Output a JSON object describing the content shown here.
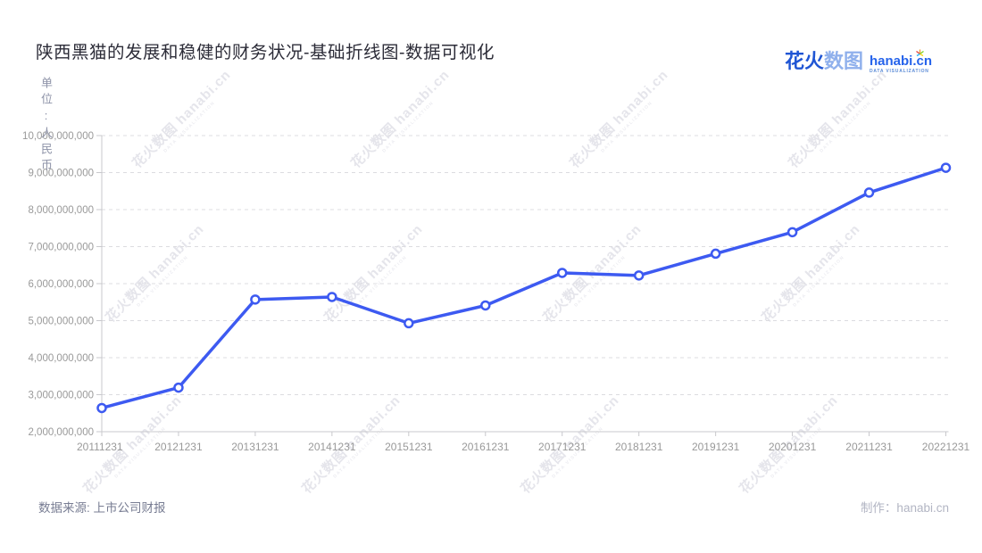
{
  "title": "陕西黑猫的发展和稳健的财务状况-基础折线图-数据可视化",
  "logo": {
    "brand_cn_primary": "花火",
    "brand_cn_secondary": "数图",
    "brand_en": "hanabi.cn",
    "tagline": "DATA VISUALIZATION"
  },
  "unit_label": "单位:人民币",
  "footer": {
    "source": "数据来源: 上市公司财报",
    "credit": "制作：hanabi.cn"
  },
  "watermark": {
    "text": "花火数图 hanabi.cn",
    "tagline": "DATA VISUALIZATION"
  },
  "colors": {
    "line": "#3d5af1",
    "marker_fill": "#ffffff",
    "axis": "#c8c8cc",
    "grid": "#dcdce0",
    "tick_label": "#999999"
  },
  "chart_data": {
    "type": "line",
    "title": "陕西黑猫的发展和稳健的财务状况-基础折线图-数据可视化",
    "categories": [
      "20111231",
      "20121231",
      "20131231",
      "20141231",
      "20151231",
      "20161231",
      "20171231",
      "20181231",
      "20191231",
      "20201231",
      "20211231",
      "20221231"
    ],
    "values": [
      2640000000,
      3190000000,
      5570000000,
      5640000000,
      4930000000,
      5410000000,
      6290000000,
      6220000000,
      6810000000,
      7390000000,
      8460000000,
      9130000000
    ],
    "xlabel": "",
    "ylabel": "单位:人民币",
    "ylim": [
      2000000000,
      10000000000
    ],
    "ytick_interval": 1000000000,
    "ytick_labels": [
      "2,000,000,000",
      "3,000,000,000",
      "4,000,000,000",
      "5,000,000,000",
      "6,000,000,000",
      "7,000,000,000",
      "8,000,000,000",
      "9,000,000,000",
      "10,000,000,000"
    ],
    "grid": true,
    "legend": false
  }
}
